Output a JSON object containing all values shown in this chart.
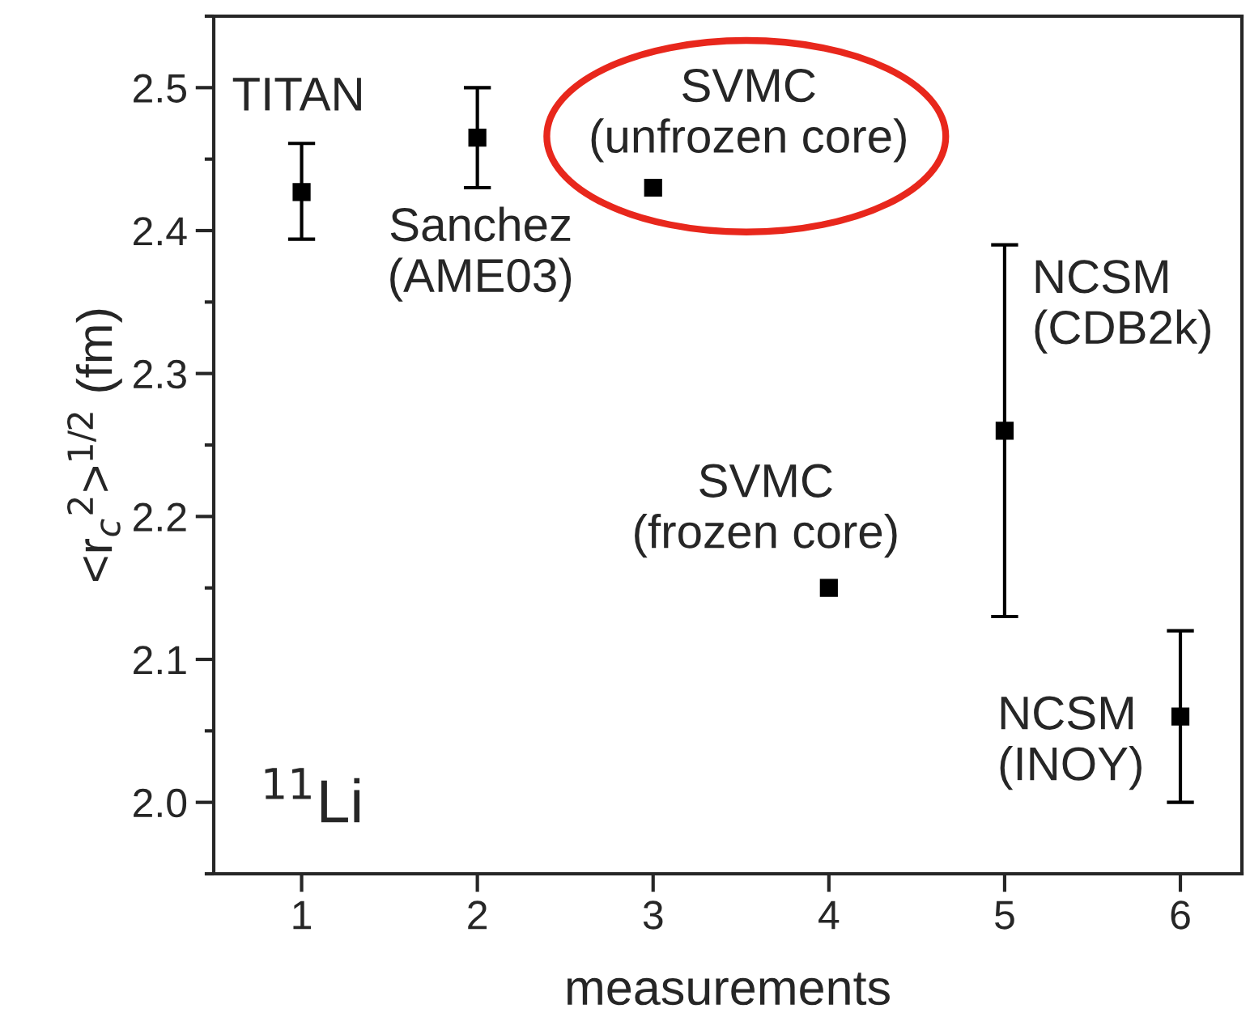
{
  "chart_data": {
    "type": "scatter",
    "xlabel": "measurements",
    "ylabel": "<r$_{c}$$^{2}$>$^{1/2}$ (fm)",
    "x": [
      1,
      2,
      3,
      4,
      5,
      6
    ],
    "series": [
      {
        "color": "#000000",
        "values": [
          2.427,
          2.465,
          2.43,
          2.15,
          2.26,
          2.06
        ],
        "errors": [
          [
            2.394,
            2.461
          ],
          [
            2.43,
            2.5
          ],
          null,
          null,
          [
            2.13,
            2.39
          ],
          [
            2.0,
            2.12
          ]
        ]
      }
    ],
    "marker": "square",
    "xlim": [
      0.5,
      6.35
    ],
    "ylim": [
      1.95,
      2.55
    ],
    "xticks": [
      1,
      2,
      3,
      4,
      5,
      6
    ],
    "yticks": [
      {
        "value": 2.0,
        "label": "2.0"
      },
      {
        "value": 2.1,
        "label": "2.1"
      },
      {
        "value": 2.2,
        "label": "2.2"
      },
      {
        "value": 2.3,
        "label": "2.3"
      },
      {
        "value": 2.4,
        "label": "2.4"
      },
      {
        "value": 2.5,
        "label": "2.5"
      }
    ],
    "grid": false,
    "legend": false,
    "annotations": [
      {
        "text": "TITAN",
        "x": 1,
        "y": 2.427
      },
      {
        "text": "Sanchez\n(AME03)",
        "x": 2,
        "y": 2.465
      },
      {
        "text": "SVMC\n(unfrozen core)",
        "x": 3,
        "y": 2.43
      },
      {
        "text": "SVMC\n(frozen core)",
        "x": 4,
        "y": 2.15
      },
      {
        "text": "NCSM\n(CDB2k)",
        "x": 5,
        "y": 2.26
      },
      {
        "text": "NCSM\n(INOY)",
        "x": 6,
        "y": 2.06
      },
      "$^{11}$Li"
    ]
  }
}
